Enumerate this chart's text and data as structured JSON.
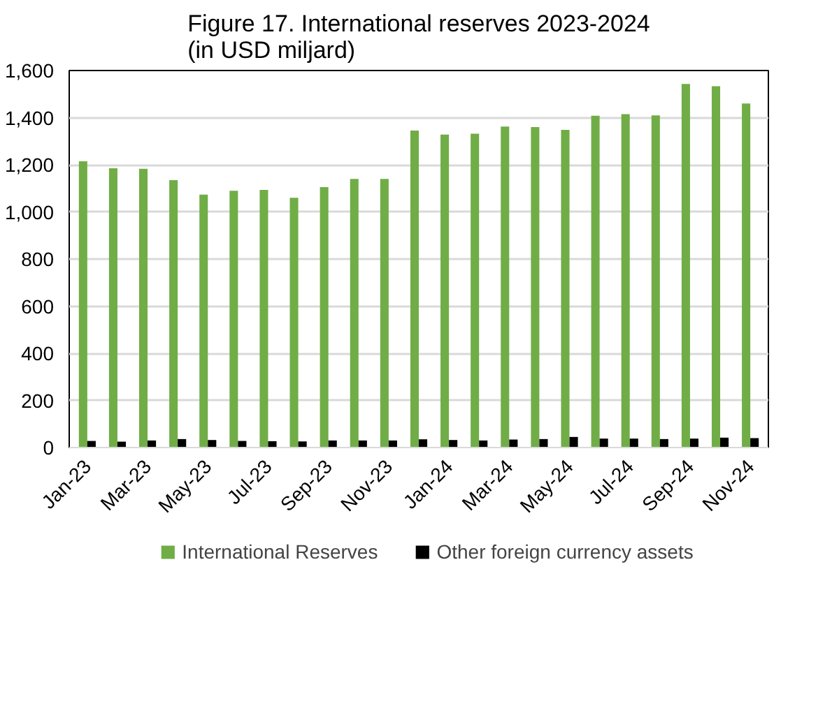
{
  "chart_data": {
    "type": "bar",
    "title": "Figure 17. International reserves 2023-2024\n(in USD miljard)",
    "categories": [
      "Jan-23",
      null,
      "Mar-23",
      null,
      "May-23",
      null,
      "Jul-23",
      null,
      "Sep-23",
      null,
      "Nov-23",
      null,
      "Jan-24",
      null,
      "Mar-24",
      null,
      "May-24",
      null,
      "Jul-24",
      null,
      "Sep-24",
      null,
      "Nov-24"
    ],
    "series": [
      {
        "name": "International Reserves",
        "color": "#70ad47",
        "values": [
          1215,
          1185,
          1183,
          1135,
          1073,
          1090,
          1093,
          1060,
          1105,
          1140,
          1140,
          1345,
          1328,
          1332,
          1362,
          1360,
          1348,
          1408,
          1415,
          1410,
          1543,
          1533,
          1460
        ]
      },
      {
        "name": "Other foreign currency assets",
        "color": "#000000",
        "values": [
          28,
          25,
          30,
          36,
          32,
          28,
          27,
          26,
          30,
          30,
          30,
          35,
          32,
          30,
          34,
          36,
          45,
          38,
          38,
          36,
          38,
          42,
          40
        ]
      }
    ],
    "ylim": [
      0,
      1600
    ],
    "yticks": [
      {
        "value": 0,
        "label": "0"
      },
      {
        "value": 200,
        "label": "200"
      },
      {
        "value": 400,
        "label": "400"
      },
      {
        "value": 600,
        "label": "600"
      },
      {
        "value": 800,
        "label": "800"
      },
      {
        "value": 1000,
        "label": "1,000"
      },
      {
        "value": 1200,
        "label": "1,200"
      },
      {
        "value": 1400,
        "label": "1,400"
      },
      {
        "value": 1600,
        "label": "1,600"
      }
    ],
    "grid": "y",
    "legend": "bottom"
  }
}
